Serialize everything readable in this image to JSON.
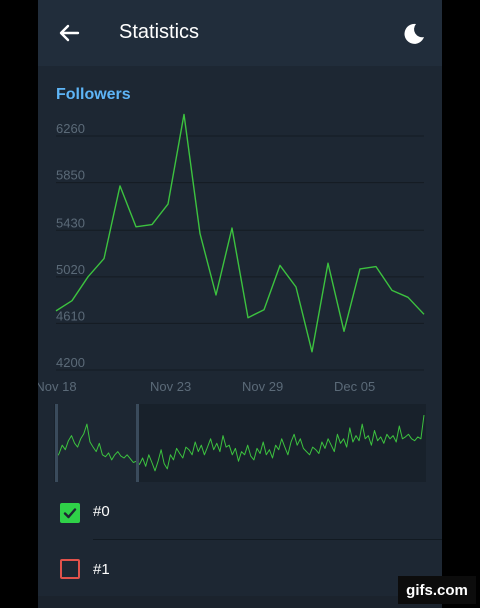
{
  "app_bar": {
    "title": "Statistics",
    "back_icon": "arrow-left-icon",
    "night_icon": "moon-icon"
  },
  "chart_data": {
    "type": "line",
    "title": "Followers",
    "x_tick_labels": [
      "Nov 18",
      "Nov 23",
      "Nov 29",
      "Dec 05"
    ],
    "y_tick_labels": [
      "4200",
      "4610",
      "5020",
      "5430",
      "5850",
      "6260"
    ],
    "ylim": [
      4200,
      6260
    ],
    "series": [
      {
        "name": "#0",
        "color": "#3cc23f",
        "values": [
          4650,
          4740,
          4950,
          5110,
          5750,
          5390,
          5410,
          5590,
          6380,
          5330,
          4790,
          5380,
          4590,
          4660,
          5050,
          4860,
          4290,
          5070,
          4470,
          5020,
          5040,
          4830,
          4770,
          4620
        ]
      }
    ],
    "overview": {
      "series_color": "#3cc23f",
      "values": [
        0.25,
        0.32,
        0.45,
        0.38,
        0.52,
        0.6,
        0.48,
        0.42,
        0.55,
        0.63,
        0.78,
        0.5,
        0.42,
        0.35,
        0.48,
        0.3,
        0.27,
        0.33,
        0.22,
        0.3,
        0.35,
        0.28,
        0.25,
        0.3,
        0.24,
        0.18,
        0.2,
        0.15,
        0.25,
        0.12,
        0.3,
        0.18,
        0.05,
        0.2,
        0.38,
        0.16,
        0.08,
        0.3,
        0.22,
        0.4,
        0.32,
        0.25,
        0.42,
        0.38,
        0.3,
        0.5,
        0.35,
        0.45,
        0.3,
        0.42,
        0.55,
        0.38,
        0.48,
        0.35,
        0.6,
        0.42,
        0.45,
        0.3,
        0.4,
        0.2,
        0.35,
        0.3,
        0.45,
        0.28,
        0.22,
        0.4,
        0.32,
        0.5,
        0.3,
        0.38,
        0.25,
        0.45,
        0.38,
        0.55,
        0.42,
        0.3,
        0.5,
        0.62,
        0.45,
        0.55,
        0.4,
        0.35,
        0.3,
        0.42,
        0.38,
        0.32,
        0.5,
        0.4,
        0.55,
        0.45,
        0.35,
        0.62,
        0.48,
        0.55,
        0.42,
        0.72,
        0.5,
        0.6,
        0.52,
        0.78,
        0.55,
        0.6,
        0.45,
        0.68,
        0.52,
        0.58,
        0.48,
        0.62,
        0.55,
        0.6,
        0.5,
        0.75,
        0.55,
        0.58,
        0.62,
        0.55,
        0.52,
        0.58,
        0.55,
        0.92
      ]
    },
    "grid": true
  },
  "legend": {
    "items": [
      {
        "label": "#0",
        "checked": true,
        "color": "#2fd148"
      },
      {
        "label": "#1",
        "checked": false,
        "color": "#e1524b"
      }
    ]
  },
  "watermark": "gifs.com"
}
